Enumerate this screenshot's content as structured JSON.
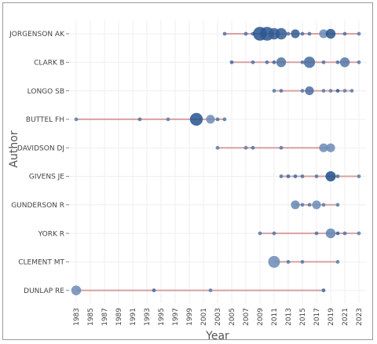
{
  "chart_data": {
    "type": "scatter",
    "xlabel": "Year",
    "ylabel": "Author",
    "xlim": [
      1982,
      2024
    ],
    "xticks": [
      "1983",
      "1985",
      "1987",
      "1989",
      "1991",
      "1993",
      "1995",
      "1997",
      "1999",
      "2001",
      "2003",
      "2005",
      "2007",
      "2009",
      "2011",
      "2013",
      "2015",
      "2017",
      "2019",
      "2021",
      "2023"
    ],
    "colors": {
      "line": "#d9a0a4",
      "point_dark": "#1f4e8a",
      "point_light": "#8fa8cc",
      "grid": "#efefef"
    },
    "authors": [
      {
        "name": "JORGENSON AK",
        "start": 2004,
        "end": 2023,
        "points": [
          {
            "year": 2004,
            "size": 1,
            "shade": 0.6
          },
          {
            "year": 2007,
            "size": 1,
            "shade": 0.6
          },
          {
            "year": 2008,
            "size": 1,
            "shade": 0.6
          },
          {
            "year": 2009,
            "size": 3,
            "shade": 0.95
          },
          {
            "year": 2010,
            "size": 3,
            "shade": 0.9
          },
          {
            "year": 2011,
            "size": 2.5,
            "shade": 0.85
          },
          {
            "year": 2012,
            "size": 2.5,
            "shade": 0.85
          },
          {
            "year": 2013,
            "size": 1,
            "shade": 0.6
          },
          {
            "year": 2014,
            "size": 2,
            "shade": 0.85
          },
          {
            "year": 2015,
            "size": 1,
            "shade": 0.6
          },
          {
            "year": 2016,
            "size": 1,
            "shade": 0.6
          },
          {
            "year": 2018,
            "size": 2,
            "shade": 0.35
          },
          {
            "year": 2019,
            "size": 2.2,
            "shade": 0.95
          },
          {
            "year": 2021,
            "size": 1,
            "shade": 0.6
          },
          {
            "year": 2023,
            "size": 1,
            "shade": 0.5
          }
        ]
      },
      {
        "name": "CLARK B",
        "start": 2005,
        "end": 2023,
        "points": [
          {
            "year": 2005,
            "size": 1,
            "shade": 0.7
          },
          {
            "year": 2008,
            "size": 1,
            "shade": 0.6
          },
          {
            "year": 2010,
            "size": 1,
            "shade": 0.6
          },
          {
            "year": 2011,
            "size": 1,
            "shade": 0.7
          },
          {
            "year": 2012,
            "size": 2.2,
            "shade": 0.6
          },
          {
            "year": 2015,
            "size": 1,
            "shade": 0.6
          },
          {
            "year": 2016,
            "size": 2.5,
            "shade": 0.7
          },
          {
            "year": 2018,
            "size": 1,
            "shade": 0.6
          },
          {
            "year": 2020,
            "size": 1,
            "shade": 0.6
          },
          {
            "year": 2021,
            "size": 2.2,
            "shade": 0.55
          },
          {
            "year": 2023,
            "size": 1,
            "shade": 0.5
          }
        ]
      },
      {
        "name": "LONGO SB",
        "start": 2011,
        "end": 2022,
        "points": [
          {
            "year": 2011,
            "size": 1,
            "shade": 0.55
          },
          {
            "year": 2012,
            "size": 1,
            "shade": 0.6
          },
          {
            "year": 2015,
            "size": 1,
            "shade": 0.55
          },
          {
            "year": 2016,
            "size": 2,
            "shade": 0.65
          },
          {
            "year": 2018,
            "size": 1,
            "shade": 0.5
          },
          {
            "year": 2019,
            "size": 1,
            "shade": 0.5
          },
          {
            "year": 2020,
            "size": 1,
            "shade": 0.85
          },
          {
            "year": 2021,
            "size": 1,
            "shade": 0.5
          },
          {
            "year": 2022,
            "size": 1,
            "shade": 0.5
          }
        ]
      },
      {
        "name": "BUTTEL FH",
        "start": 1983,
        "end": 2004,
        "points": [
          {
            "year": 1983,
            "size": 1,
            "shade": 0.5
          },
          {
            "year": 1992,
            "size": 1,
            "shade": 0.6
          },
          {
            "year": 1996,
            "size": 1,
            "shade": 0.5
          },
          {
            "year": 2000,
            "size": 2.8,
            "shade": 0.95
          },
          {
            "year": 2002,
            "size": 2,
            "shade": 0.35
          },
          {
            "year": 2003,
            "size": 1,
            "shade": 0.6
          },
          {
            "year": 2004,
            "size": 1,
            "shade": 0.55
          }
        ]
      },
      {
        "name": "DAVIDSON DJ",
        "start": 2003,
        "end": 2019,
        "points": [
          {
            "year": 2003,
            "size": 1,
            "shade": 0.5
          },
          {
            "year": 2007,
            "size": 1,
            "shade": 0.5
          },
          {
            "year": 2008,
            "size": 1,
            "shade": 0.6
          },
          {
            "year": 2012,
            "size": 1,
            "shade": 0.55
          },
          {
            "year": 2018,
            "size": 2,
            "shade": 0.35
          },
          {
            "year": 2019,
            "size": 2,
            "shade": 0.35
          }
        ]
      },
      {
        "name": "GIVENS JE",
        "start": 2012,
        "end": 2023,
        "points": [
          {
            "year": 2012,
            "size": 1,
            "shade": 0.6
          },
          {
            "year": 2013,
            "size": 1,
            "shade": 0.75
          },
          {
            "year": 2014,
            "size": 1,
            "shade": 0.7
          },
          {
            "year": 2015,
            "size": 1,
            "shade": 0.6
          },
          {
            "year": 2017,
            "size": 1,
            "shade": 0.55
          },
          {
            "year": 2019,
            "size": 2.3,
            "shade": 1.0
          },
          {
            "year": 2020,
            "size": 1,
            "shade": 0.6
          },
          {
            "year": 2023,
            "size": 1,
            "shade": 0.5
          }
        ]
      },
      {
        "name": "GUNDERSON R",
        "start": 2014,
        "end": 2020,
        "points": [
          {
            "year": 2014,
            "size": 2,
            "shade": 0.4
          },
          {
            "year": 2015,
            "size": 1,
            "shade": 0.5
          },
          {
            "year": 2016,
            "size": 1,
            "shade": 0.55
          },
          {
            "year": 2017,
            "size": 2,
            "shade": 0.35
          },
          {
            "year": 2018,
            "size": 1,
            "shade": 0.5
          },
          {
            "year": 2020,
            "size": 1,
            "shade": 0.5
          }
        ]
      },
      {
        "name": "YORK R",
        "start": 2009,
        "end": 2023,
        "points": [
          {
            "year": 2009,
            "size": 1,
            "shade": 0.55
          },
          {
            "year": 2011,
            "size": 1,
            "shade": 0.55
          },
          {
            "year": 2017,
            "size": 1,
            "shade": 0.6
          },
          {
            "year": 2019,
            "size": 2.2,
            "shade": 0.45
          },
          {
            "year": 2020,
            "size": 1,
            "shade": 0.8
          },
          {
            "year": 2021,
            "size": 1,
            "shade": 0.6
          },
          {
            "year": 2023,
            "size": 1,
            "shade": 0.5
          }
        ]
      },
      {
        "name": "CLEMENT MT",
        "start": 2011,
        "end": 2020,
        "points": [
          {
            "year": 2011,
            "size": 2.6,
            "shade": 0.35
          },
          {
            "year": 2013,
            "size": 1,
            "shade": 0.55
          },
          {
            "year": 2015,
            "size": 1,
            "shade": 0.55
          },
          {
            "year": 2020,
            "size": 1,
            "shade": 0.5
          }
        ]
      },
      {
        "name": "DUNLAP RE",
        "start": 1983,
        "end": 2018,
        "points": [
          {
            "year": 1983,
            "size": 2.2,
            "shade": 0.35
          },
          {
            "year": 1994,
            "size": 1,
            "shade": 0.7
          },
          {
            "year": 2002,
            "size": 1,
            "shade": 0.5
          },
          {
            "year": 2018,
            "size": 1,
            "shade": 0.75
          }
        ]
      }
    ]
  }
}
